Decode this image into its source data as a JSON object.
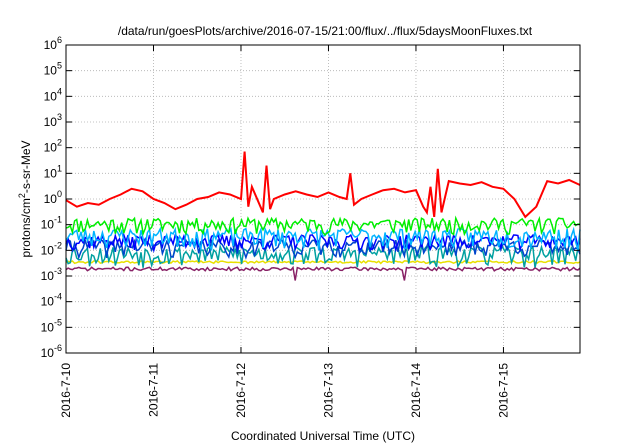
{
  "chart_data": {
    "type": "line",
    "title": "/data/run/goesPlots/archive/2016-07-15/21:00/flux/../flux/5daysMoonFluxes.txt",
    "xlabel": "Coordinated Universal Time (UTC)",
    "ylabel_main": "protons/cm",
    "ylabel_sup": "2",
    "ylabel_tail": "-s-sr-MeV",
    "yscale": "log",
    "ylim": [
      1e-06,
      1000000.0
    ],
    "xlim": [
      "2016-07-10T00:00",
      "2016-07-15T21:00"
    ],
    "grid": true,
    "y_ticks": [
      {
        "value": 1e-06,
        "base": "10",
        "exp": "-6"
      },
      {
        "value": 1e-05,
        "base": "10",
        "exp": "-5"
      },
      {
        "value": 0.0001,
        "base": "10",
        "exp": "-4"
      },
      {
        "value": 0.001,
        "base": "10",
        "exp": "-3"
      },
      {
        "value": 0.01,
        "base": "10",
        "exp": "-2"
      },
      {
        "value": 0.1,
        "base": "10",
        "exp": "-1"
      },
      {
        "value": 1.0,
        "base": "10",
        "exp": "0"
      },
      {
        "value": 10.0,
        "base": "10",
        "exp": "1"
      },
      {
        "value": 100.0,
        "base": "10",
        "exp": "2"
      },
      {
        "value": 1000.0,
        "base": "10",
        "exp": "3"
      },
      {
        "value": 10000.0,
        "base": "10",
        "exp": "4"
      },
      {
        "value": 100000.0,
        "base": "10",
        "exp": "5"
      },
      {
        "value": 1000000.0,
        "base": "10",
        "exp": "6"
      }
    ],
    "x_ticks": [
      {
        "value": "2016-07-10T00:00",
        "label": "2016-7-10"
      },
      {
        "value": "2016-07-11T00:00",
        "label": "2016-7-11"
      },
      {
        "value": "2016-07-12T00:00",
        "label": "2016-7-12"
      },
      {
        "value": "2016-07-13T00:00",
        "label": "2016-7-13"
      },
      {
        "value": "2016-07-14T00:00",
        "label": "2016-7-14"
      },
      {
        "value": "2016-07-15T00:00",
        "label": "2016-7-15"
      }
    ],
    "series": [
      {
        "color": "#ff0000",
        "x": [
          "2016-07-10T00:00",
          "2016-07-10T03:00",
          "2016-07-10T06:00",
          "2016-07-10T09:00",
          "2016-07-10T12:00",
          "2016-07-10T15:00",
          "2016-07-10T18:00",
          "2016-07-10T21:00",
          "2016-07-11T00:00",
          "2016-07-11T03:00",
          "2016-07-11T06:00",
          "2016-07-11T09:00",
          "2016-07-11T12:00",
          "2016-07-11T15:00",
          "2016-07-11T18:00",
          "2016-07-11T21:00",
          "2016-07-12T00:00",
          "2016-07-12T01:00",
          "2016-07-12T02:00",
          "2016-07-12T03:00",
          "2016-07-12T06:00",
          "2016-07-12T07:00",
          "2016-07-12T08:00",
          "2016-07-12T09:00",
          "2016-07-12T12:00",
          "2016-07-12T15:00",
          "2016-07-12T18:00",
          "2016-07-12T21:00",
          "2016-07-13T00:00",
          "2016-07-13T03:00",
          "2016-07-13T05:00",
          "2016-07-13T06:00",
          "2016-07-13T07:00",
          "2016-07-13T09:00",
          "2016-07-13T12:00",
          "2016-07-13T15:00",
          "2016-07-13T18:00",
          "2016-07-13T21:00",
          "2016-07-14T00:00",
          "2016-07-14T02:00",
          "2016-07-14T03:00",
          "2016-07-14T04:00",
          "2016-07-14T05:00",
          "2016-07-14T06:00",
          "2016-07-14T07:00",
          "2016-07-14T09:00",
          "2016-07-14T12:00",
          "2016-07-14T15:00",
          "2016-07-14T18:00",
          "2016-07-14T21:00",
          "2016-07-15T00:00",
          "2016-07-15T03:00",
          "2016-07-15T06:00",
          "2016-07-15T09:00",
          "2016-07-15T12:00",
          "2016-07-15T15:00",
          "2016-07-15T18:00",
          "2016-07-15T21:00"
        ],
        "values": [
          0.9,
          0.5,
          0.7,
          0.6,
          1.0,
          1.5,
          2.5,
          2.0,
          1.0,
          0.7,
          0.4,
          0.6,
          1.0,
          1.2,
          1.8,
          1.5,
          1.0,
          70,
          0.5,
          3,
          0.3,
          20,
          0.4,
          1.0,
          1.5,
          2.0,
          1.5,
          1.2,
          1.8,
          1.2,
          1.0,
          10,
          0.6,
          1.0,
          1.5,
          2.2,
          2.5,
          1.8,
          2.2,
          0.5,
          0.3,
          3,
          0.2,
          15,
          0.3,
          5.0,
          4.0,
          3.5,
          4.5,
          3.0,
          2.5,
          1.0,
          0.2,
          0.5,
          5.0,
          4.0,
          5.5,
          3.5
        ]
      },
      {
        "color": "#00ee00",
        "base": 0.11,
        "amp": 0.07,
        "seed": 11
      },
      {
        "color": "#00b4ff",
        "base": 0.04,
        "amp": 0.03,
        "seed": 23
      },
      {
        "color": "#0000ff",
        "base": 0.025,
        "amp": 0.015,
        "seed": 37
      },
      {
        "color": "#0044cc",
        "base": 0.015,
        "amp": 0.01,
        "seed": 41
      },
      {
        "color": "#00a0a0",
        "base": 0.008,
        "amp": 0.006,
        "seed": 53
      },
      {
        "color": "#e8e000",
        "base": 0.0035,
        "amp": 0.0004,
        "seed": 61
      },
      {
        "color": "#882266",
        "base": 0.0019,
        "amp": 0.0003,
        "seed": 71,
        "dips": [
          "2016-07-12T15:00",
          "2016-07-13T21:00"
        ]
      }
    ]
  }
}
